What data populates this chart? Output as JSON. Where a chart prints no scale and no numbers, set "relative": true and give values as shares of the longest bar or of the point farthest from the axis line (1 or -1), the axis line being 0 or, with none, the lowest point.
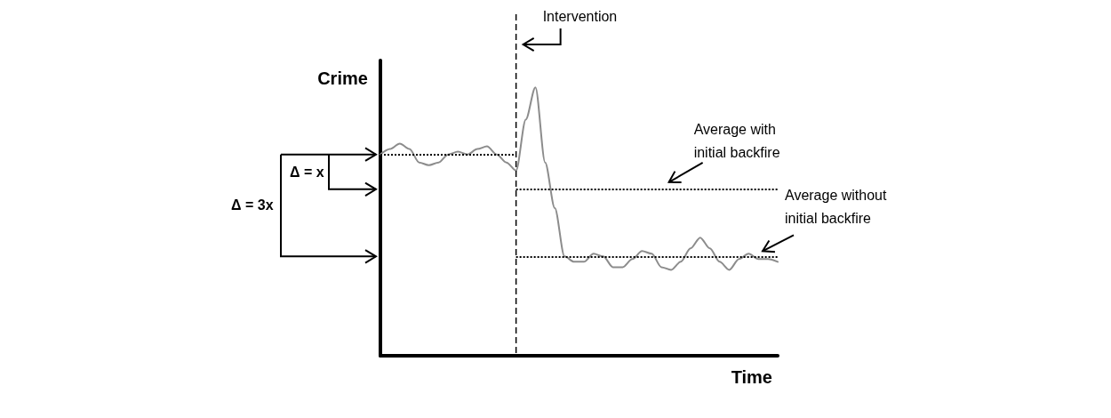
{
  "chart_data": {
    "type": "line",
    "relative": true,
    "xlabel": "Time",
    "ylabel": "Crime",
    "marker": "none",
    "line_style": "solid",
    "grid": false,
    "categories": [
      null,
      null,
      null,
      null,
      null,
      null,
      null,
      null,
      null,
      null,
      null,
      null,
      null,
      null,
      null,
      null,
      null,
      null,
      null,
      null,
      null,
      null,
      null,
      null,
      null,
      null,
      null,
      null,
      null,
      null,
      null,
      null,
      null,
      null,
      null,
      null,
      null,
      null,
      null,
      null,
      null,
      null
    ],
    "series": [
      {
        "color": "#8c8c8c",
        "values": [
          0.75,
          0.77,
          0.79,
          0.77,
          0.72,
          0.71,
          0.72,
          0.75,
          0.76,
          0.75,
          0.77,
          0.78,
          0.75,
          0.72,
          0.69,
          0.88,
          1,
          0.72,
          0.55,
          0.37,
          0.35,
          0.35,
          0.38,
          0.37,
          0.33,
          0.33,
          0.36,
          0.39,
          0.38,
          0.33,
          0.32,
          0.35,
          0.4,
          0.44,
          0.4,
          0.35,
          0.32,
          0.36,
          0.38,
          0.36,
          0.36,
          0.35
        ]
      }
    ],
    "ref_lines": [
      {
        "axis": "y",
        "value": 0.75,
        "line_style": "dotted",
        "color": "#000000"
      },
      {
        "axis": "y",
        "value": 0.62,
        "label": "Average with initial backfire",
        "line_style": "dotted",
        "color": "#000000"
      },
      {
        "axis": "y",
        "value": 0.37,
        "label": "Average without initial backfire",
        "line_style": "dotted",
        "color": "#000000"
      }
    ],
    "annotations": [
      "Intervention",
      "Δ = x",
      "Δ = 3x"
    ]
  }
}
